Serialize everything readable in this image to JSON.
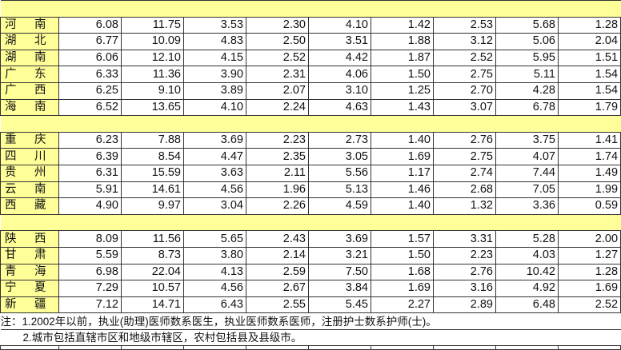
{
  "groups": [
    {
      "rows": [
        {
          "n1": "河",
          "n2": "南",
          "v": [
            "6.08",
            "11.75",
            "3.53",
            "2.30",
            "4.10",
            "1.42",
            "2.53",
            "5.68",
            "1.28"
          ]
        },
        {
          "n1": "湖",
          "n2": "北",
          "v": [
            "6.77",
            "10.09",
            "4.83",
            "2.50",
            "3.51",
            "1.88",
            "3.12",
            "5.06",
            "2.04"
          ]
        },
        {
          "n1": "湖",
          "n2": "南",
          "v": [
            "6.06",
            "12.10",
            "4.15",
            "2.52",
            "4.42",
            "1.87",
            "2.52",
            "5.95",
            "1.51"
          ]
        },
        {
          "n1": "广",
          "n2": "东",
          "v": [
            "6.33",
            "11.36",
            "3.90",
            "2.31",
            "4.06",
            "1.50",
            "2.75",
            "5.11",
            "1.54"
          ]
        },
        {
          "n1": "广",
          "n2": "西",
          "v": [
            "6.25",
            "9.10",
            "3.89",
            "2.07",
            "3.10",
            "1.25",
            "2.70",
            "4.28",
            "1.54"
          ]
        },
        {
          "n1": "海",
          "n2": "南",
          "v": [
            "6.52",
            "13.65",
            "4.10",
            "2.24",
            "4.63",
            "1.43",
            "3.07",
            "6.78",
            "1.79"
          ]
        }
      ]
    },
    {
      "rows": [
        {
          "n1": "重",
          "n2": "庆",
          "v": [
            "6.23",
            "7.88",
            "3.69",
            "2.23",
            "2.73",
            "1.40",
            "2.76",
            "3.75",
            "1.41"
          ]
        },
        {
          "n1": "四",
          "n2": "川",
          "v": [
            "6.39",
            "8.54",
            "4.47",
            "2.35",
            "3.05",
            "1.69",
            "2.75",
            "4.07",
            "1.74"
          ]
        },
        {
          "n1": "贵",
          "n2": "州",
          "v": [
            "6.31",
            "15.59",
            "3.63",
            "2.11",
            "5.56",
            "1.17",
            "2.74",
            "7.44",
            "1.49"
          ]
        },
        {
          "n1": "云",
          "n2": "南",
          "v": [
            "5.91",
            "14.61",
            "4.56",
            "1.96",
            "5.13",
            "1.46",
            "2.68",
            "7.05",
            "1.99"
          ]
        },
        {
          "n1": "西",
          "n2": "藏",
          "v": [
            "4.90",
            "9.97",
            "3.04",
            "2.26",
            "4.59",
            "1.40",
            "1.32",
            "3.36",
            "0.59"
          ]
        }
      ]
    },
    {
      "rows": [
        {
          "n1": "陕",
          "n2": "西",
          "v": [
            "8.09",
            "11.56",
            "5.65",
            "2.43",
            "3.69",
            "1.57",
            "3.31",
            "5.28",
            "2.00"
          ]
        },
        {
          "n1": "甘",
          "n2": "肃",
          "v": [
            "5.59",
            "8.73",
            "3.80",
            "2.14",
            "3.21",
            "1.50",
            "2.23",
            "4.03",
            "1.27"
          ]
        },
        {
          "n1": "青",
          "n2": "海",
          "v": [
            "6.98",
            "22.04",
            "4.13",
            "2.59",
            "7.50",
            "1.68",
            "2.76",
            "10.42",
            "1.28"
          ]
        },
        {
          "n1": "宁",
          "n2": "夏",
          "v": [
            "7.29",
            "10.57",
            "4.56",
            "2.67",
            "3.84",
            "1.69",
            "3.16",
            "4.92",
            "1.69"
          ]
        },
        {
          "n1": "新",
          "n2": "疆",
          "v": [
            "7.12",
            "14.71",
            "6.43",
            "2.55",
            "5.45",
            "2.27",
            "2.89",
            "6.48",
            "2.52"
          ]
        }
      ]
    }
  ],
  "notes": [
    "注：1.2002年以前，执业(助理)医师数系医生，执业医师数系医师，注册护士数系护师(士)。",
    "2.城市包括直辖市区和地级市辖区，农村包括县及县级市。"
  ]
}
